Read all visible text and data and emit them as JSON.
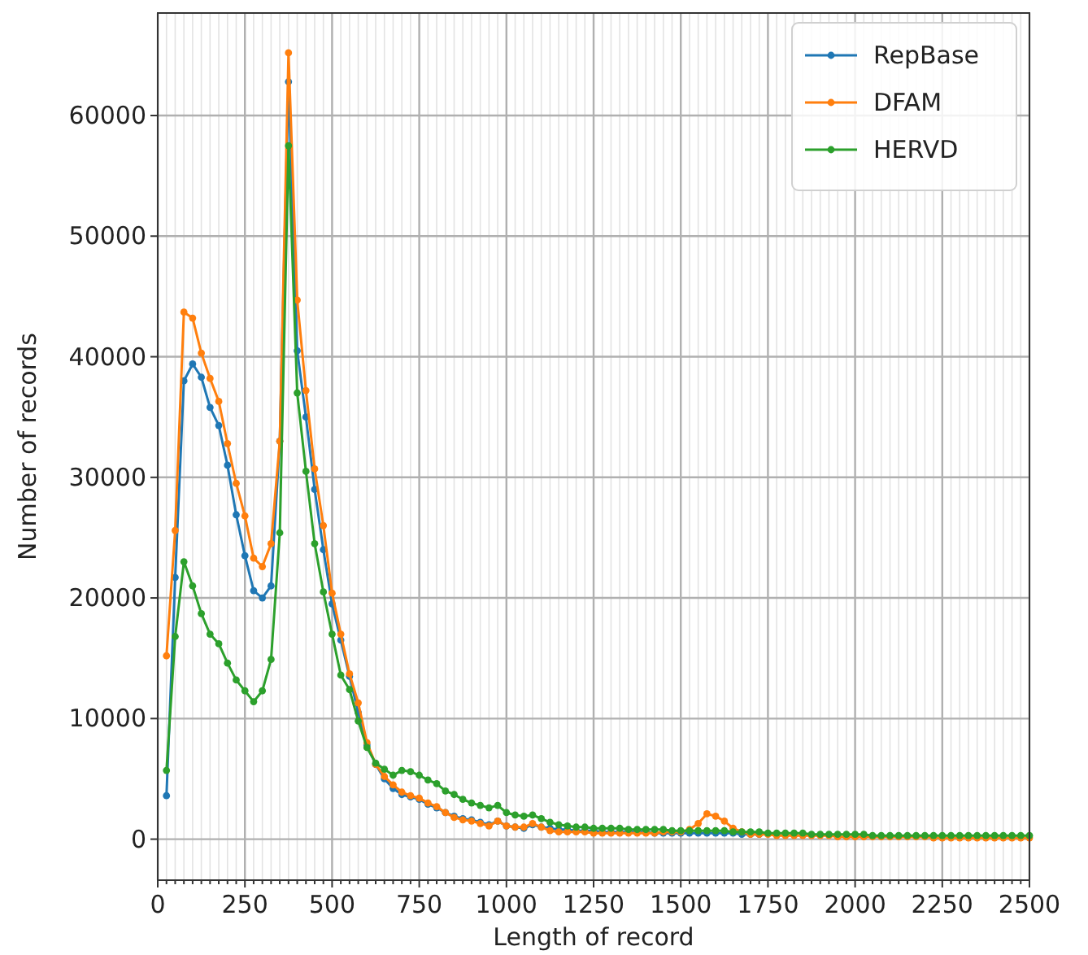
{
  "chart_data": {
    "type": "line",
    "xlabel": "Length of record",
    "ylabel": "Number of records",
    "x": [
      25,
      50,
      75,
      100,
      125,
      150,
      175,
      200,
      225,
      250,
      275,
      300,
      325,
      350,
      375,
      400,
      425,
      450,
      475,
      500,
      525,
      550,
      575,
      600,
      625,
      650,
      675,
      700,
      725,
      750,
      775,
      800,
      825,
      850,
      875,
      900,
      925,
      950,
      975,
      1000,
      1025,
      1050,
      1075,
      1100,
      1125,
      1150,
      1175,
      1200,
      1225,
      1250,
      1275,
      1300,
      1325,
      1350,
      1375,
      1400,
      1425,
      1450,
      1475,
      1500,
      1525,
      1550,
      1575,
      1600,
      1625,
      1650,
      1675,
      1700,
      1725,
      1750,
      1775,
      1800,
      1825,
      1850,
      1875,
      1900,
      1925,
      1950,
      1975,
      2000,
      2025,
      2050,
      2075,
      2100,
      2125,
      2150,
      2175,
      2200,
      2225,
      2250,
      2275,
      2300,
      2325,
      2350,
      2375,
      2400,
      2425,
      2450,
      2475,
      2500
    ],
    "series": [
      {
        "name": "RepBase",
        "color": "#1f77b4",
        "values": [
          3600,
          21700,
          38000,
          39400,
          38300,
          35800,
          34300,
          31000,
          26900,
          23500,
          20600,
          20000,
          21000,
          33000,
          62800,
          40500,
          35000,
          29000,
          24000,
          19500,
          16500,
          13500,
          10500,
          7800,
          6200,
          5000,
          4200,
          3700,
          3500,
          3300,
          2900,
          2600,
          2200,
          1900,
          1700,
          1600,
          1400,
          1200,
          1500,
          1100,
          1000,
          900,
          1200,
          1000,
          900,
          800,
          800,
          700,
          700,
          700,
          600,
          600,
          600,
          600,
          600,
          600,
          500,
          500,
          500,
          500,
          500,
          500,
          500,
          500,
          500,
          500,
          400,
          400,
          400,
          null,
          null,
          null,
          null,
          null,
          null,
          null,
          null,
          null,
          null,
          null,
          null,
          null,
          null,
          null,
          null,
          null,
          null,
          null,
          null,
          null,
          null,
          null,
          null,
          null,
          null,
          null,
          null,
          null,
          null,
          null
        ]
      },
      {
        "name": "DFAM",
        "color": "#ff7f0e",
        "values": [
          15200,
          25600,
          43700,
          43200,
          40300,
          38200,
          36300,
          32800,
          29500,
          26800,
          23300,
          22600,
          24500,
          33000,
          65200,
          44700,
          37200,
          30700,
          26000,
          20400,
          17000,
          13700,
          11300,
          8000,
          6200,
          5200,
          4500,
          3900,
          3600,
          3400,
          3000,
          2700,
          2200,
          1800,
          1600,
          1500,
          1300,
          1100,
          1500,
          1100,
          1000,
          1000,
          1300,
          1000,
          700,
          600,
          600,
          600,
          600,
          500,
          500,
          500,
          500,
          500,
          500,
          500,
          500,
          600,
          600,
          600,
          800,
          1300,
          2100,
          1900,
          1500,
          900,
          600,
          400,
          400,
          400,
          300,
          300,
          300,
          300,
          300,
          300,
          300,
          200,
          200,
          200,
          200,
          200,
          200,
          200,
          200,
          200,
          200,
          200,
          100,
          100,
          100,
          100,
          100,
          100,
          100,
          100,
          100,
          100,
          100,
          100
        ]
      },
      {
        "name": "HERVD",
        "color": "#2ca02c",
        "values": [
          5700,
          16800,
          23000,
          21000,
          18700,
          17000,
          16200,
          14600,
          13200,
          12300,
          11400,
          12300,
          14900,
          25400,
          57500,
          37000,
          30500,
          24500,
          20500,
          17000,
          13600,
          12400,
          9800,
          7600,
          6300,
          5800,
          5300,
          5700,
          5600,
          5300,
          4900,
          4600,
          4000,
          3700,
          3300,
          3000,
          2800,
          2600,
          2800,
          2200,
          2000,
          1900,
          2000,
          1700,
          1400,
          1200,
          1100,
          1000,
          1000,
          900,
          900,
          900,
          900,
          800,
          800,
          800,
          800,
          800,
          700,
          700,
          700,
          700,
          700,
          700,
          700,
          600,
          600,
          600,
          600,
          500,
          500,
          500,
          500,
          500,
          400,
          400,
          400,
          400,
          400,
          400,
          400,
          300,
          300,
          300,
          300,
          300,
          300,
          300,
          300,
          300,
          300,
          300,
          300,
          300,
          300,
          300,
          300,
          300,
          300,
          300
        ]
      }
    ],
    "xlim": [
      0,
      2500
    ],
    "ylim": [
      -3400,
      68500
    ],
    "xticks": [
      0,
      {
        "value": 25,
        "label": null
      },
      {
        "value": 50,
        "label": null
      },
      {
        "value": 75,
        "label": null
      },
      {
        "value": 100,
        "label": null
      },
      {
        "value": 125,
        "label": null
      },
      {
        "value": 150,
        "label": null
      },
      {
        "value": 175,
        "label": null
      },
      {
        "value": 200,
        "label": null
      },
      {
        "value": 225,
        "label": null
      },
      250,
      {
        "value": 275,
        "label": null
      },
      {
        "value": 300,
        "label": null
      },
      {
        "value": 325,
        "label": null
      },
      {
        "value": 350,
        "label": null
      },
      {
        "value": 375,
        "label": null
      },
      {
        "value": 400,
        "label": null
      },
      {
        "value": 425,
        "label": null
      },
      {
        "value": 450,
        "label": null
      },
      {
        "value": 475,
        "label": null
      },
      500,
      {
        "value": 525,
        "label": null
      },
      {
        "value": 550,
        "label": null
      },
      {
        "value": 575,
        "label": null
      },
      {
        "value": 600,
        "label": null
      },
      {
        "value": 625,
        "label": null
      },
      {
        "value": 650,
        "label": null
      },
      {
        "value": 675,
        "label": null
      },
      {
        "value": 700,
        "label": null
      },
      {
        "value": 725,
        "label": null
      },
      750,
      {
        "value": 775,
        "label": null
      },
      {
        "value": 800,
        "label": null
      },
      {
        "value": 825,
        "label": null
      },
      {
        "value": 850,
        "label": null
      },
      {
        "value": 875,
        "label": null
      },
      {
        "value": 900,
        "label": null
      },
      {
        "value": 925,
        "label": null
      },
      {
        "value": 950,
        "label": null
      },
      {
        "value": 975,
        "label": null
      },
      1000,
      {
        "value": 1025,
        "label": null
      },
      {
        "value": 1050,
        "label": null
      },
      {
        "value": 1075,
        "label": null
      },
      {
        "value": 1100,
        "label": null
      },
      {
        "value": 1125,
        "label": null
      },
      {
        "value": 1150,
        "label": null
      },
      {
        "value": 1175,
        "label": null
      },
      {
        "value": 1200,
        "label": null
      },
      {
        "value": 1225,
        "label": null
      },
      1250,
      {
        "value": 1275,
        "label": null
      },
      {
        "value": 1300,
        "label": null
      },
      {
        "value": 1325,
        "label": null
      },
      {
        "value": 1350,
        "label": null
      },
      {
        "value": 1375,
        "label": null
      },
      {
        "value": 1400,
        "label": null
      },
      {
        "value": 1425,
        "label": null
      },
      {
        "value": 1450,
        "label": null
      },
      {
        "value": 1475,
        "label": null
      },
      1500,
      {
        "value": 1525,
        "label": null
      },
      {
        "value": 1550,
        "label": null
      },
      {
        "value": 1575,
        "label": null
      },
      {
        "value": 1600,
        "label": null
      },
      {
        "value": 1625,
        "label": null
      },
      {
        "value": 1650,
        "label": null
      },
      {
        "value": 1675,
        "label": null
      },
      {
        "value": 1700,
        "label": null
      },
      {
        "value": 1725,
        "label": null
      },
      1750,
      {
        "value": 1775,
        "label": null
      },
      {
        "value": 1800,
        "label": null
      },
      {
        "value": 1825,
        "label": null
      },
      {
        "value": 1850,
        "label": null
      },
      {
        "value": 1875,
        "label": null
      },
      {
        "value": 1900,
        "label": null
      },
      {
        "value": 1925,
        "label": null
      },
      {
        "value": 1950,
        "label": null
      },
      {
        "value": 1975,
        "label": null
      },
      2000,
      {
        "value": 2025,
        "label": null
      },
      {
        "value": 2050,
        "label": null
      },
      {
        "value": 2075,
        "label": null
      },
      {
        "value": 2100,
        "label": null
      },
      {
        "value": 2125,
        "label": null
      },
      {
        "value": 2150,
        "label": null
      },
      {
        "value": 2175,
        "label": null
      },
      {
        "value": 2200,
        "label": null
      },
      {
        "value": 2225,
        "label": null
      },
      2250,
      {
        "value": 2275,
        "label": null
      },
      {
        "value": 2300,
        "label": null
      },
      {
        "value": 2325,
        "label": null
      },
      {
        "value": 2350,
        "label": null
      },
      {
        "value": 2375,
        "label": null
      },
      {
        "value": 2400,
        "label": null
      },
      {
        "value": 2425,
        "label": null
      },
      {
        "value": 2450,
        "label": null
      },
      {
        "value": 2475,
        "label": null
      },
      2500
    ],
    "yticks": [
      0,
      10000,
      20000,
      30000,
      40000,
      50000,
      60000
    ],
    "grid": true,
    "legend": "top right",
    "marker": "circle",
    "line_style": "solid"
  }
}
